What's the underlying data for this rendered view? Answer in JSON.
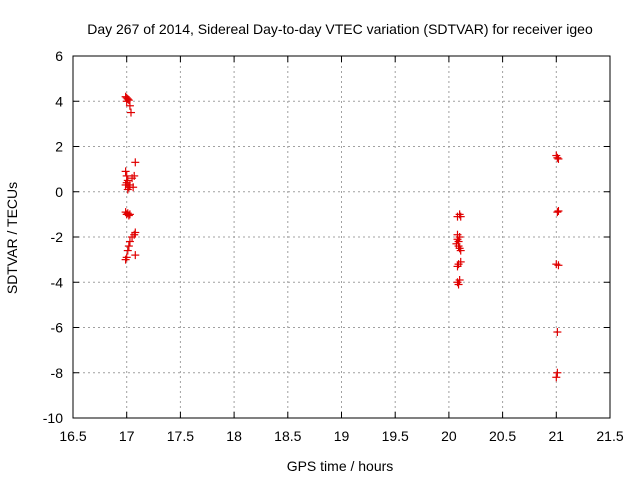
{
  "chart_data": {
    "type": "scatter",
    "title": "Day 267 of 2014, Sidereal Day-to-day VTEC variation (SDTVAR) for receiver igeo",
    "xlabel": "GPS time / hours",
    "ylabel": "SDTVAR / TECUs",
    "xlim": [
      16.5,
      21.5
    ],
    "ylim": [
      -10,
      6
    ],
    "xticks": [
      "16.5",
      "17",
      "17.5",
      "18",
      "18.5",
      "19",
      "19.5",
      "20",
      "20.5",
      "21",
      "21.5"
    ],
    "yticks": [
      "-10",
      "-8",
      "-6",
      "-4",
      "-2",
      "0",
      "2",
      "4",
      "6"
    ],
    "grid": true,
    "marker": "+",
    "color": "#e00000",
    "series": [
      {
        "name": "SDTVAR",
        "points": [
          [
            16.99,
            4.2
          ],
          [
            17.0,
            4.15
          ],
          [
            17.01,
            4.1
          ],
          [
            17.02,
            4.05
          ],
          [
            17.0,
            4.0
          ],
          [
            17.03,
            3.8
          ],
          [
            17.04,
            3.5
          ],
          [
            16.99,
            0.9
          ],
          [
            17.0,
            0.7
          ],
          [
            17.01,
            0.5
          ],
          [
            17.0,
            0.4
          ],
          [
            16.99,
            0.3
          ],
          [
            17.02,
            0.2
          ],
          [
            17.01,
            0.1
          ],
          [
            17.03,
            0.3
          ],
          [
            17.05,
            0.6
          ],
          [
            17.06,
            0.2
          ],
          [
            17.08,
            1.3
          ],
          [
            17.07,
            0.7
          ],
          [
            16.99,
            -0.9
          ],
          [
            17.0,
            -1.0
          ],
          [
            17.01,
            -0.95
          ],
          [
            17.02,
            -1.05
          ],
          [
            17.03,
            -1.0
          ],
          [
            16.99,
            -3.0
          ],
          [
            17.0,
            -2.9
          ],
          [
            17.01,
            -2.6
          ],
          [
            17.02,
            -2.4
          ],
          [
            17.03,
            -2.2
          ],
          [
            17.05,
            -2.0
          ],
          [
            17.07,
            -1.9
          ],
          [
            17.08,
            -1.8
          ],
          [
            17.08,
            -2.8
          ],
          [
            20.08,
            -1.1
          ],
          [
            20.1,
            -1.0
          ],
          [
            20.11,
            -1.1
          ],
          [
            20.08,
            -1.9
          ],
          [
            20.1,
            -2.0
          ],
          [
            20.09,
            -2.2
          ],
          [
            20.07,
            -2.3
          ],
          [
            20.09,
            -2.4
          ],
          [
            20.1,
            -2.5
          ],
          [
            20.11,
            -2.6
          ],
          [
            20.08,
            -2.1
          ],
          [
            20.09,
            -3.2
          ],
          [
            20.11,
            -3.1
          ],
          [
            20.08,
            -3.3
          ],
          [
            20.08,
            -4.0
          ],
          [
            20.1,
            -3.9
          ],
          [
            20.09,
            -4.1
          ],
          [
            21.0,
            1.6
          ],
          [
            21.01,
            1.5
          ],
          [
            21.02,
            1.45
          ],
          [
            21.01,
            -0.9
          ],
          [
            21.02,
            -0.85
          ],
          [
            21.0,
            -3.2
          ],
          [
            21.02,
            -3.25
          ],
          [
            21.01,
            -6.2
          ],
          [
            21.01,
            -8.0
          ],
          [
            21.0,
            -8.2
          ]
        ]
      }
    ]
  }
}
